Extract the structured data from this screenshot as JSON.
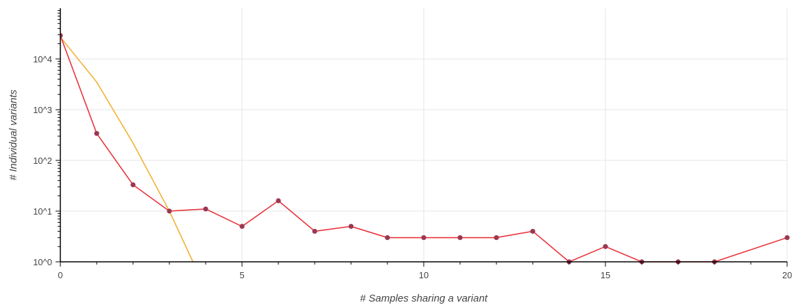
{
  "chart_data": {
    "type": "line",
    "title": "",
    "xlabel": "# Samples sharing a variant",
    "ylabel": "# Individual variants",
    "xlim": [
      0,
      20
    ],
    "ylim": [
      1,
      100000
    ],
    "yscale": "log",
    "grid": true,
    "x_ticks": [
      0,
      5,
      10,
      15,
      20
    ],
    "y_ticks": [
      {
        "value": 1,
        "label": "10^0"
      },
      {
        "value": 10,
        "label": "10^1"
      },
      {
        "value": 100,
        "label": "10^2"
      },
      {
        "value": 1000,
        "label": "10^3"
      },
      {
        "value": 10000,
        "label": "10^4"
      }
    ],
    "series": [
      {
        "color": "#f2b134",
        "markers": false,
        "x": [
          0,
          1,
          2,
          3,
          3.65
        ],
        "y": [
          27000,
          3500,
          220,
          10,
          1
        ]
      },
      {
        "color": "#e8343c",
        "marker_color": "#9b3752",
        "markers": true,
        "x": [
          0,
          1,
          2,
          3,
          4,
          5,
          6,
          7,
          8,
          9,
          10,
          11,
          12,
          13,
          14,
          15,
          16,
          17,
          18,
          20
        ],
        "y": [
          29000,
          340,
          33,
          10,
          11,
          5,
          16,
          4,
          5,
          3,
          3,
          3,
          3,
          4,
          1,
          2,
          1,
          1,
          1,
          3
        ]
      }
    ]
  }
}
